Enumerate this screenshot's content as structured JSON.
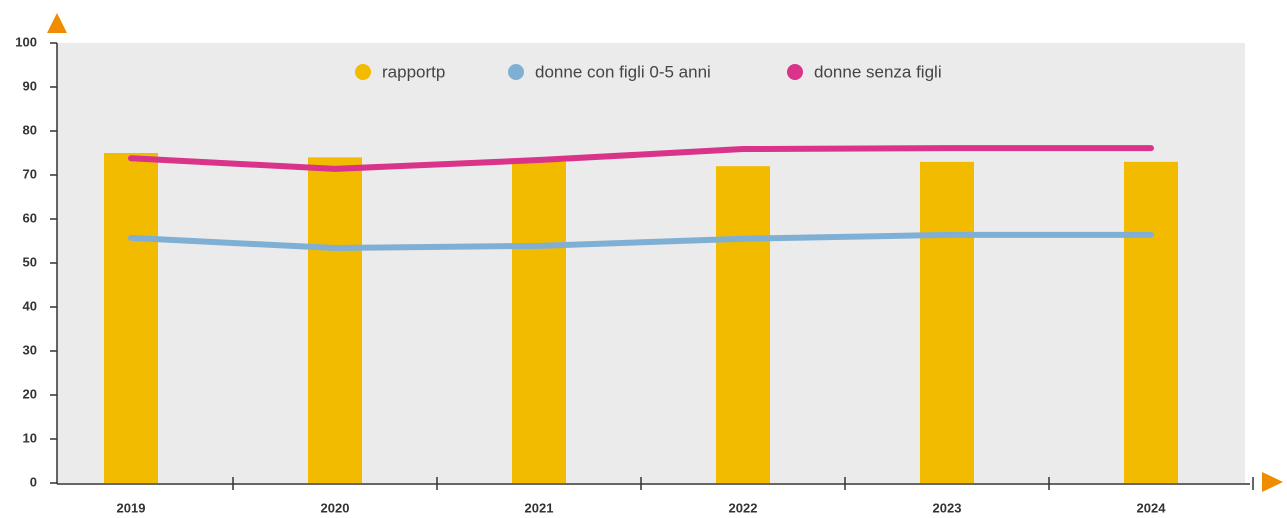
{
  "chart_data": {
    "type": "bar_line",
    "categories": [
      "2019",
      "2020",
      "2021",
      "2022",
      "2023",
      "2024"
    ],
    "series": [
      {
        "name": "rapportp",
        "color": "#f2bb00",
        "type": "bar",
        "values": [
          75,
          74,
          73,
          72,
          73,
          73
        ]
      },
      {
        "name": "donne con figli 0-5 anni",
        "color": "#7fb0d4",
        "type": "line",
        "values": [
          55.7,
          53.4,
          53.9,
          55.5,
          56.4,
          56.4
        ]
      },
      {
        "name": "donne senza figli",
        "color": "#d9338a",
        "type": "line",
        "values": [
          73.8,
          71.4,
          73.4,
          75.9,
          76.1,
          76.1
        ]
      }
    ],
    "ylim": [
      0,
      100
    ],
    "yticks": [
      0,
      10,
      20,
      30,
      40,
      50,
      60,
      70,
      80,
      90,
      100
    ],
    "grid": false,
    "legend": "top"
  }
}
